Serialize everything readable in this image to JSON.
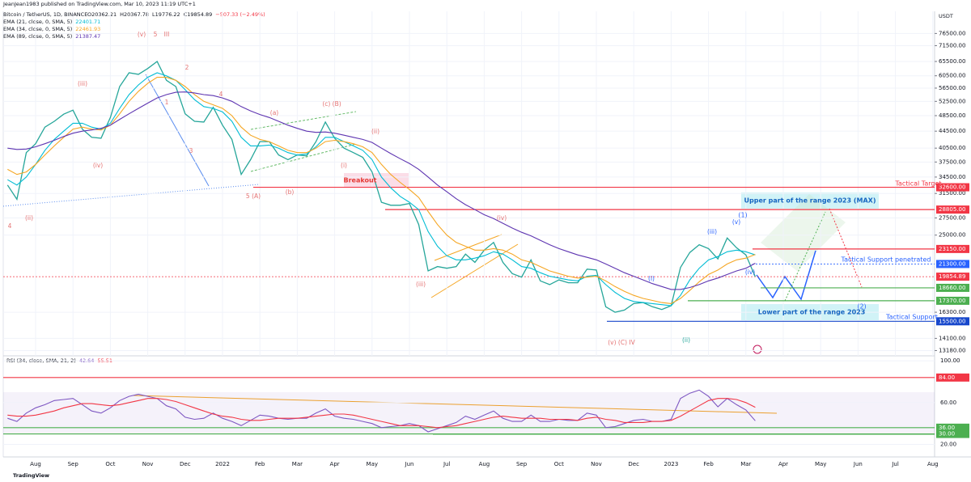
{
  "header": {
    "title": "JeanJean1983 published on TradingView.com, Mar 10, 2023 11:19 UTC+1"
  },
  "chart_data": [
    {
      "type": "line",
      "title": "Bitcoin / TetherUS, 1D, BINANCE",
      "ohlc": [
        "O20362.21",
        "H20367.78",
        "L19776.22",
        "C19854.89",
        "−507.33 (−2.49%)"
      ],
      "y_axis_label": "USDT",
      "log_scale": true,
      "grid": true,
      "ylim": [
        11700,
        86500
      ],
      "yticks": [
        {
          "value": 76500,
          "label": "76500.00"
        },
        {
          "value": 71500,
          "label": "71500.00"
        },
        {
          "value": 65500,
          "label": "65500.00"
        },
        {
          "value": 60500,
          "label": "60500.00"
        },
        {
          "value": 56500,
          "label": "56500.00"
        },
        {
          "value": 52500,
          "label": "52500.00"
        },
        {
          "value": 48500,
          "label": "48500.00"
        },
        {
          "value": 44500,
          "label": "44500.00"
        },
        {
          "value": 40500,
          "label": "40500.00"
        },
        {
          "value": 37500,
          "label": "37500.00"
        },
        {
          "value": 34500,
          "label": "34500.00"
        },
        {
          "value": 31500,
          "label": "31500.00"
        },
        {
          "value": 27500,
          "label": "27500.00"
        },
        {
          "value": 25000,
          "label": "25000.00"
        },
        {
          "value": 16300,
          "label": "16300.00"
        },
        {
          "value": 14100,
          "label": "14100.00"
        },
        {
          "value": 13180,
          "label": "13180.00"
        }
      ],
      "categories": [
        null,
        null,
        null,
        "Aug",
        null,
        null,
        null,
        "Sep",
        null,
        null,
        null,
        "Oct",
        null,
        null,
        null,
        "Nov",
        null,
        null,
        null,
        "Dec",
        null,
        null,
        null,
        "2022",
        null,
        null,
        null,
        "Feb",
        null,
        null,
        null,
        "Mar",
        null,
        null,
        null,
        "Apr",
        null,
        null,
        null,
        "May",
        null,
        null,
        null,
        "Jun",
        null,
        null,
        null,
        "Jul",
        null,
        null,
        null,
        "Aug",
        null,
        null,
        null,
        "Sep",
        null,
        null,
        null,
        "Oct",
        null,
        null,
        null,
        "Nov",
        null,
        null,
        null,
        "Dec",
        null,
        null,
        null,
        "2023",
        null,
        null,
        null,
        "Feb",
        null,
        null,
        null,
        "Mar",
        null,
        null,
        null,
        "Apr",
        null,
        null,
        null,
        "May",
        null,
        null,
        null,
        "Jun",
        null,
        null,
        null,
        "Jul",
        null,
        null,
        null,
        "Aug"
      ],
      "color": "#26a69a",
      "values": [
        33000,
        30500,
        39500,
        41500,
        45500,
        47000,
        48900,
        50000,
        45000,
        43000,
        42800,
        48000,
        57000,
        61500,
        61000,
        63000,
        65500,
        59000,
        57000,
        49000,
        47000,
        46800,
        50800,
        46000,
        42500,
        35000,
        38000,
        42000,
        42000,
        39000,
        38000,
        39000,
        38800,
        42000,
        46800,
        42800,
        40500,
        39500,
        38500,
        35500,
        30000,
        29500,
        29500,
        29800,
        26500,
        20500,
        21000,
        20800,
        21000,
        22500,
        21500,
        23000,
        24000,
        21500,
        20200,
        19800,
        21800,
        19400,
        19000,
        19500,
        19200,
        19200,
        20700,
        20600,
        16800,
        16300,
        16500,
        17100,
        17200,
        16800,
        16550,
        16900,
        20900,
        22700,
        23700,
        23200,
        21900,
        24600,
        23300,
        22400,
        19854.89,
        null,
        null,
        null,
        null,
        null,
        null,
        null,
        null,
        null,
        null,
        null,
        null,
        null,
        null,
        null,
        null,
        null,
        null,
        null
      ],
      "series": [
        {
          "name": "EMA (21, close, 0, SMA, 5)",
          "color": "#00bcd4",
          "values": [
            34000,
            33000,
            34500,
            37000,
            40000,
            42500,
            44500,
            46500,
            46500,
            45500,
            45000,
            46500,
            50500,
            54500,
            57500,
            60000,
            61500,
            60500,
            59000,
            56000,
            53000,
            51000,
            50500,
            49500,
            47000,
            43000,
            41000,
            41000,
            41200,
            40500,
            39500,
            39000,
            39200,
            40800,
            43000,
            43000,
            42000,
            41000,
            40000,
            38000,
            34500,
            32500,
            31000,
            30000,
            28800,
            25500,
            23500,
            22300,
            21800,
            21800,
            22000,
            22300,
            22800,
            22500,
            21800,
            21000,
            20800,
            20300,
            19900,
            19700,
            19500,
            19400,
            19900,
            20000,
            19000,
            18200,
            17600,
            17300,
            17200,
            17100,
            17000,
            16900,
            17900,
            19500,
            20800,
            21800,
            22200,
            22800,
            23000,
            22800,
            22401.71,
            null,
            null,
            null,
            null,
            null,
            null,
            null,
            null,
            null,
            null,
            null,
            null,
            null,
            null,
            null,
            null,
            null,
            null,
            null
          ]
        },
        {
          "name": "EMA (34, close, 0, SMA, 5)",
          "color": "#f5a623",
          "values": [
            36000,
            35000,
            35500,
            37000,
            39000,
            41000,
            43000,
            45000,
            45500,
            45000,
            44800,
            46000,
            49000,
            52500,
            55500,
            58000,
            60000,
            60000,
            59000,
            57000,
            54500,
            52500,
            51500,
            50500,
            48500,
            45500,
            43500,
            42500,
            42000,
            41000,
            40000,
            39500,
            39500,
            40500,
            42000,
            42300,
            42000,
            41500,
            40800,
            39500,
            37000,
            35000,
            33500,
            32200,
            30800,
            28500,
            26500,
            25000,
            24000,
            23500,
            23000,
            23000,
            23200,
            23000,
            22500,
            21800,
            21500,
            21000,
            20500,
            20200,
            19900,
            19700,
            19800,
            19900,
            19400,
            18800,
            18300,
            17900,
            17600,
            17400,
            17200,
            17100,
            17600,
            18400,
            19300,
            20100,
            20600,
            21300,
            21800,
            22000,
            22461.93,
            null,
            null,
            null,
            null,
            null,
            null,
            null,
            null,
            null,
            null,
            null,
            null,
            null,
            null,
            null,
            null,
            null,
            null,
            null
          ]
        },
        {
          "name": "EMA (89, close, 0, SMA, 5)",
          "color": "#5e35b1",
          "values": [
            40500,
            40200,
            40300,
            40800,
            41500,
            42300,
            43200,
            44000,
            44500,
            44800,
            45200,
            46000,
            47500,
            49000,
            50500,
            52000,
            53500,
            54500,
            55200,
            55300,
            55000,
            54500,
            54200,
            53500,
            52500,
            51000,
            49800,
            48800,
            48000,
            47000,
            46000,
            45200,
            44500,
            44200,
            44300,
            44000,
            43500,
            43000,
            42500,
            41800,
            40500,
            39300,
            38200,
            37200,
            36000,
            34500,
            33000,
            31800,
            30600,
            29600,
            28800,
            28000,
            27400,
            26700,
            26000,
            25400,
            24900,
            24300,
            23700,
            23200,
            22800,
            22400,
            22100,
            21800,
            21300,
            20800,
            20300,
            19900,
            19500,
            19100,
            18800,
            18500,
            18500,
            18700,
            19000,
            19400,
            19700,
            20100,
            20500,
            20800,
            21387.47,
            null,
            null,
            null,
            null,
            null,
            null,
            null,
            null,
            null,
            null,
            null,
            null,
            null,
            null,
            null,
            null,
            null,
            null,
            null
          ]
        }
      ],
      "levels": [
        {
          "value": 32600,
          "label": "32600.00",
          "color": "#f23645"
        },
        {
          "value": 28805,
          "label": "28805.00",
          "color": "#f23645"
        },
        {
          "value": 23150,
          "label": "23150.00",
          "color": "#f23645"
        },
        {
          "value": 21300,
          "label": "21300.00",
          "color": "#2962ff"
        },
        {
          "value": 19854.89,
          "label": "19854.89",
          "color": "#f23645"
        },
        {
          "value": 18660,
          "label": "18660.00",
          "color": "#4caf50"
        },
        {
          "value": 17370,
          "label": "17370.00",
          "color": "#4caf50"
        },
        {
          "value": 15500,
          "label": "15500.00",
          "color": "#1848cc"
        }
      ],
      "annotations": [
        {
          "text": "(v)",
          "color": "#e57373"
        },
        {
          "text": "5",
          "color": "#e57373"
        },
        {
          "text": "III",
          "color": "#e57373"
        },
        {
          "text": "2",
          "color": "#e57373"
        },
        {
          "text": "1",
          "color": "#e57373"
        },
        {
          "text": "3",
          "color": "#e57373"
        },
        {
          "text": "4",
          "color": "#e57373"
        },
        {
          "text": "(iii)",
          "color": "#e57373"
        },
        {
          "text": "(iv)",
          "color": "#e57373"
        },
        {
          "text": "(ii)",
          "color": "#e57373"
        },
        {
          "text": "4",
          "color": "#e57373"
        },
        {
          "text": "5 (A)",
          "color": "#e57373"
        },
        {
          "text": "(a)",
          "color": "#e57373"
        },
        {
          "text": "(b)",
          "color": "#e57373"
        },
        {
          "text": "(c) (B)",
          "color": "#e57373"
        },
        {
          "text": "(i)",
          "color": "#e57373"
        },
        {
          "text": "(ii)",
          "color": "#e57373"
        },
        {
          "text": "Breakout",
          "color": "#e53935"
        },
        {
          "text": "(iv)",
          "color": "#e57373"
        },
        {
          "text": "(iii)",
          "color": "#e57373"
        },
        {
          "text": "(v) (C) IV",
          "color": "#e57373"
        },
        {
          "text": "(i)",
          "color": "#2962ff"
        },
        {
          "text": "(ii)",
          "color": "#26a69a"
        },
        {
          "text": "(iii)",
          "color": "#2962ff"
        },
        {
          "text": "(v)",
          "color": "#2962ff"
        },
        {
          "text": "(1)",
          "color": "#2962ff"
        },
        {
          "text": "(iv)",
          "color": "#2962ff"
        },
        {
          "text": "(2)",
          "color": "#2962ff"
        },
        {
          "text": "Upper part of the range 2023 (MAX)",
          "color": "#1565c0"
        },
        {
          "text": "Lower part of the range 2023",
          "color": "#1565c0"
        },
        {
          "text": "Tactical Target",
          "color": "#f23645"
        },
        {
          "text": "Tactical Support penetrated",
          "color": "#2962ff"
        },
        {
          "text": "Tactical Support",
          "color": "#2962ff"
        }
      ]
    },
    {
      "type": "line",
      "title": "RSI (34, close, SMA, 21, 2)",
      "ylim": [
        8,
        104
      ],
      "yticks": [
        {
          "value": 100,
          "label": "100.00"
        },
        {
          "value": 60,
          "label": "60.00"
        },
        {
          "value": 20,
          "label": "20.00"
        }
      ],
      "band": [
        30,
        70
      ],
      "series": [
        {
          "color": "#7e57c2",
          "values": [
            45,
            42,
            50,
            55,
            58,
            62,
            63,
            64,
            58,
            52,
            50,
            55,
            62,
            66,
            68,
            66,
            64,
            57,
            54,
            46,
            44,
            45,
            50,
            45,
            42,
            38,
            43,
            48,
            47,
            45,
            44,
            45,
            45,
            50,
            54,
            47,
            45,
            44,
            42,
            40,
            36,
            37,
            38,
            40,
            38,
            32,
            35,
            38,
            41,
            47,
            44,
            48,
            52,
            45,
            42,
            42,
            48,
            42,
            42,
            44,
            43,
            43,
            50,
            48,
            36,
            37,
            40,
            43,
            44,
            42,
            42,
            44,
            64,
            69,
            72,
            66,
            56,
            64,
            58,
            53,
            42.64,
            null,
            null,
            null,
            null,
            null,
            null,
            null,
            null,
            null,
            null,
            null,
            null,
            null,
            null,
            null,
            null,
            null,
            null,
            null
          ]
        },
        {
          "color": "#f23645",
          "values": [
            48,
            47,
            47,
            48,
            50,
            52,
            55,
            57,
            59,
            59,
            58,
            57,
            58,
            60,
            62,
            64,
            64,
            63,
            61,
            58,
            55,
            52,
            49,
            47,
            46,
            44,
            43,
            43,
            44,
            45,
            45,
            45,
            46,
            47,
            48,
            49,
            49,
            48,
            46,
            44,
            42,
            40,
            38,
            38,
            38,
            37,
            36,
            37,
            38,
            40,
            42,
            44,
            46,
            47,
            46,
            45,
            45,
            45,
            44,
            44,
            44,
            43,
            45,
            46,
            44,
            43,
            41,
            41,
            41,
            42,
            42,
            43,
            47,
            52,
            57,
            62,
            64,
            64,
            63,
            60,
            55.51,
            null,
            null,
            null,
            null,
            null,
            null,
            null,
            null,
            null,
            null,
            null,
            null,
            null,
            null,
            null,
            null,
            null,
            null,
            null
          ]
        }
      ],
      "levels": [
        {
          "value": 84,
          "label": "84.00",
          "color": "#f23645"
        },
        {
          "value": 36,
          "label": "36.00",
          "color": "#4caf50"
        },
        {
          "value": 30,
          "label": "30.00",
          "color": "#4caf50"
        }
      ]
    }
  ],
  "footer": {
    "brand": "TradingView"
  }
}
